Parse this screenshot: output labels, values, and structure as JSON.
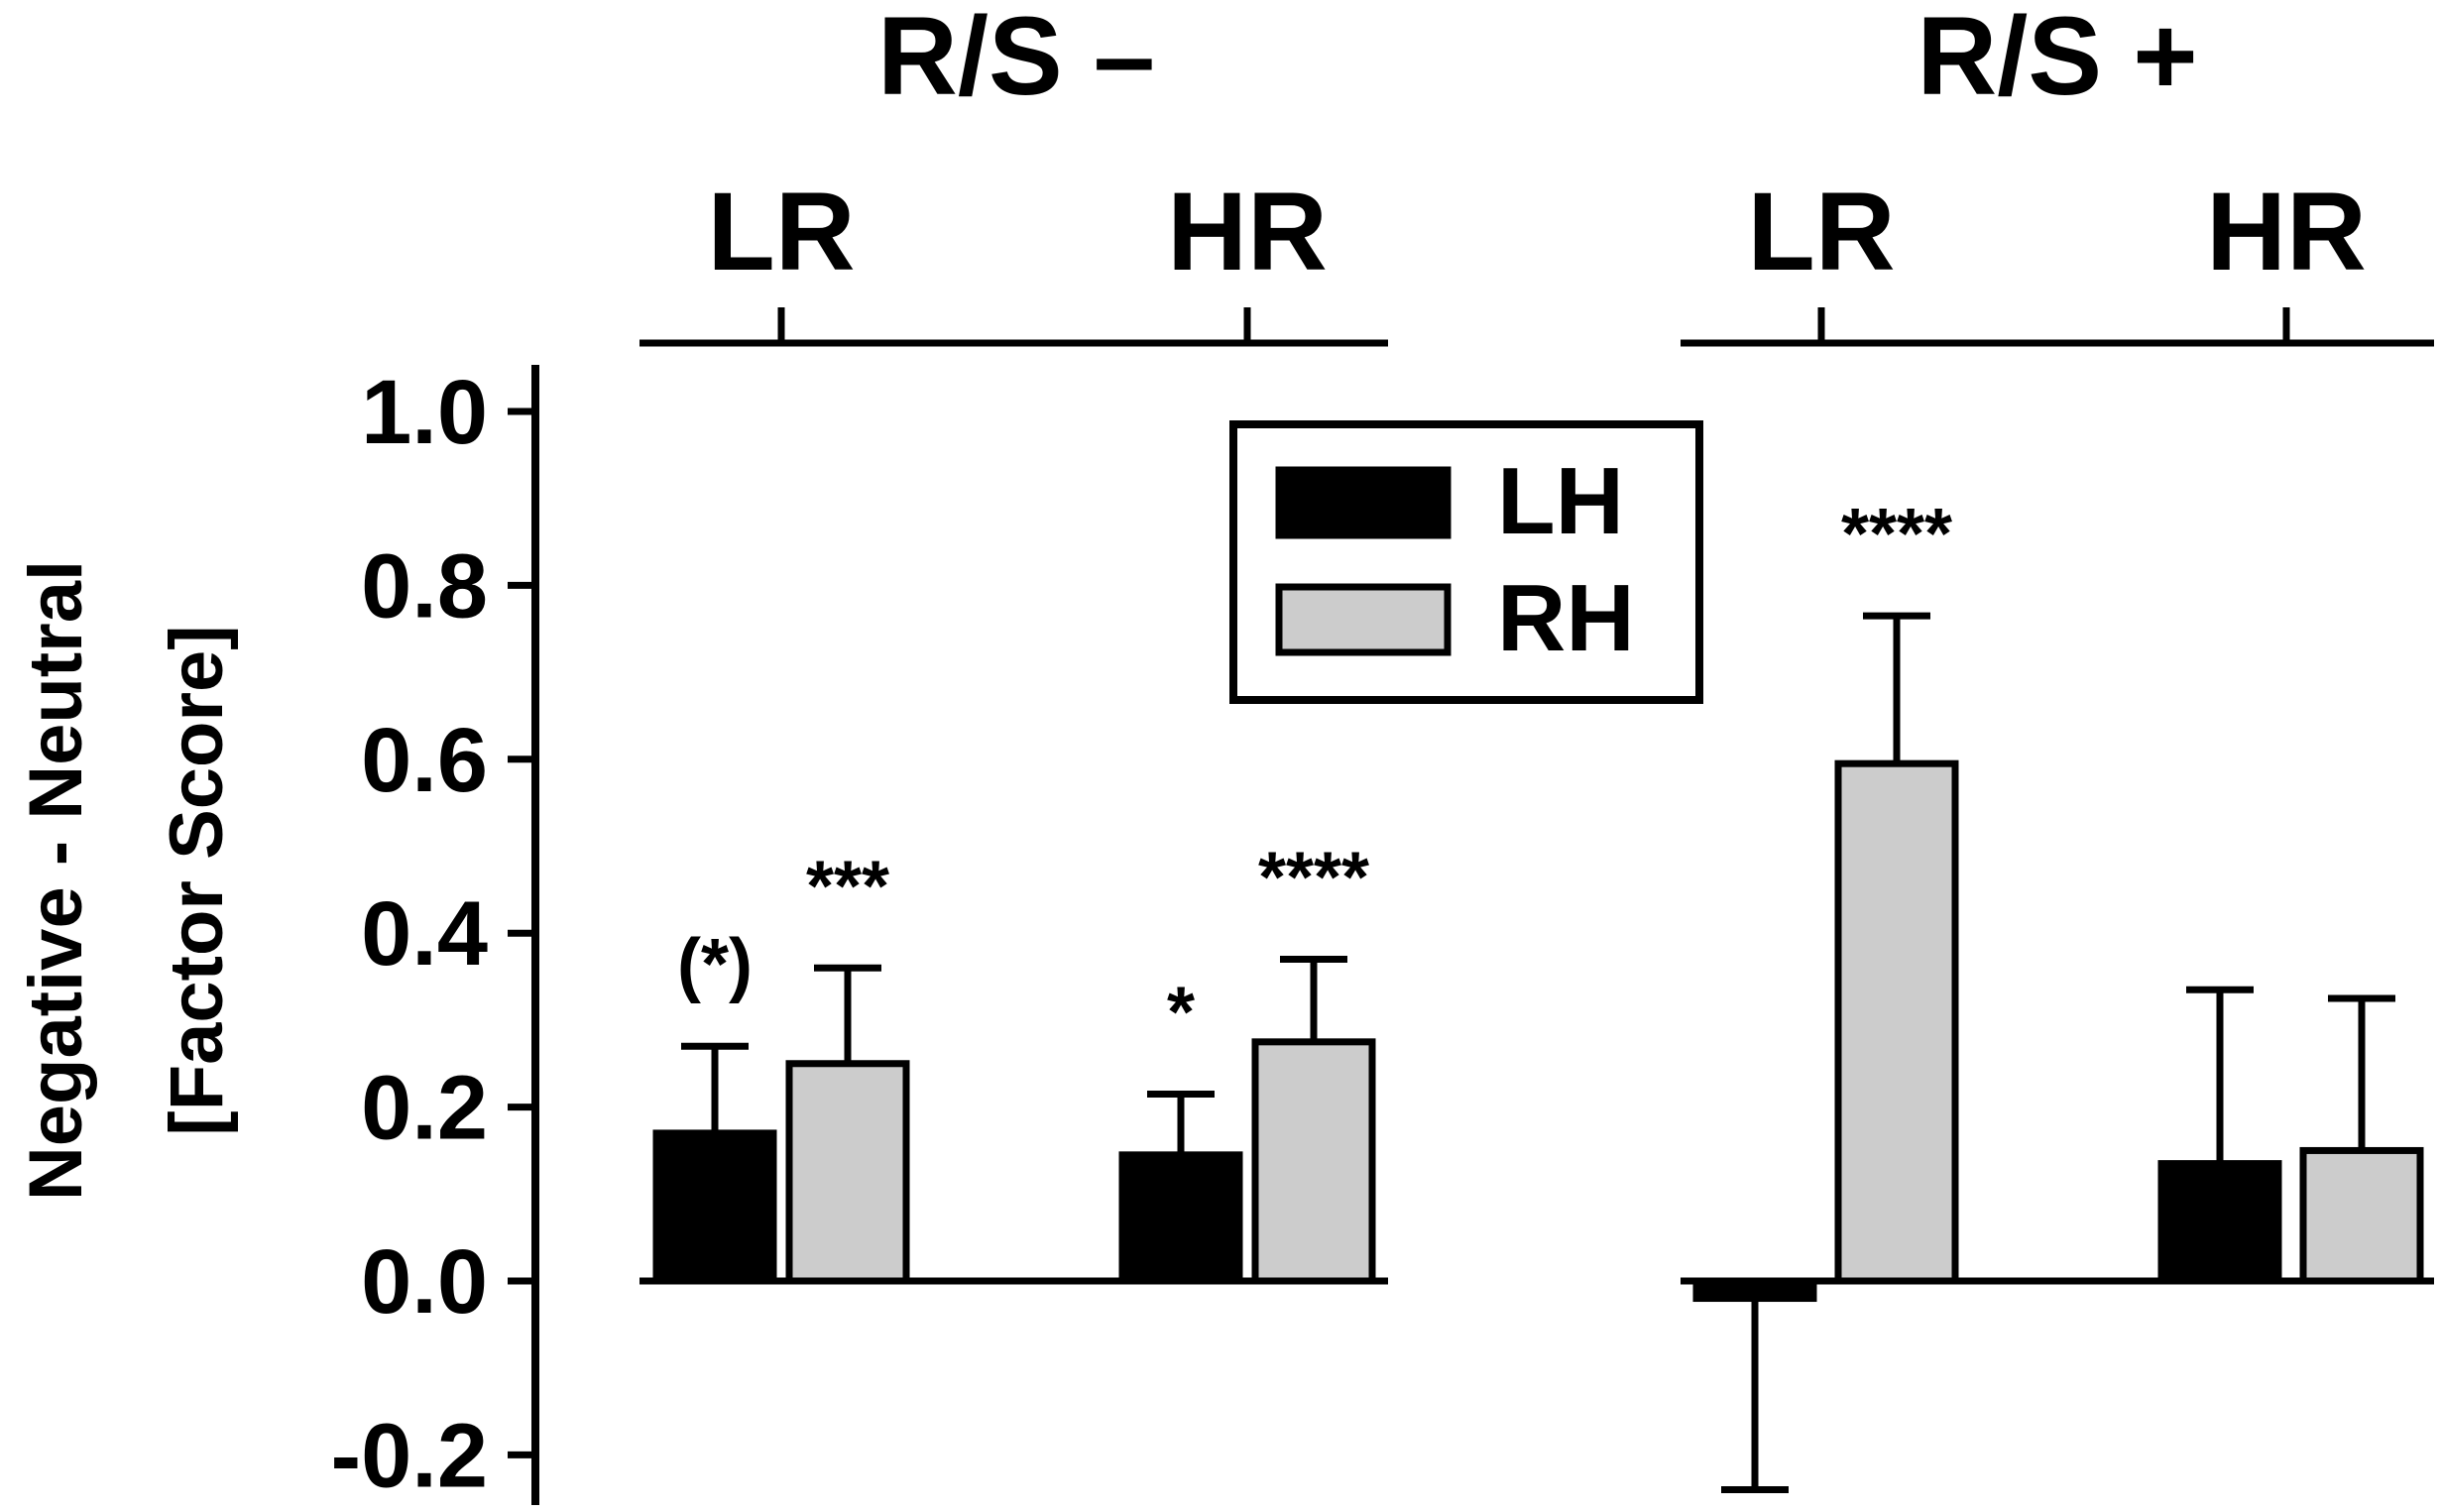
{
  "chart_data": {
    "type": "bar",
    "ylabel_line1": "Negative - Neutral",
    "ylabel_line2": "[Factor Score]",
    "ylim": [
      -0.2,
      1.0
    ],
    "yticks": [
      1.0,
      0.8,
      0.6,
      0.4,
      0.2,
      0.0,
      -0.2
    ],
    "ytick_labels": [
      "1.0",
      "0.8",
      "0.6",
      "0.4",
      "0.2",
      "0.0",
      "-0.2"
    ],
    "legend_position": "top-center",
    "series": [
      {
        "name": "LH",
        "color": "#000000"
      },
      {
        "name": "RH",
        "color": "#cccccc"
      }
    ],
    "panels": [
      {
        "label": "R/S –",
        "groups": [
          {
            "label": "LR",
            "bars": [
              {
                "series": "LH",
                "value": 0.17,
                "error": 0.1,
                "annotation": "(*)"
              },
              {
                "series": "RH",
                "value": 0.25,
                "error": 0.11,
                "annotation": "***"
              }
            ]
          },
          {
            "label": "HR",
            "bars": [
              {
                "series": "LH",
                "value": 0.145,
                "error": 0.07,
                "annotation": "*"
              },
              {
                "series": "RH",
                "value": 0.275,
                "error": 0.095,
                "annotation": "****"
              }
            ]
          }
        ]
      },
      {
        "label": "R/S +",
        "groups": [
          {
            "label": "LR",
            "bars": [
              {
                "series": "LH",
                "value": -0.02,
                "error": 0.22,
                "annotation": ""
              },
              {
                "series": "RH",
                "value": 0.595,
                "error": 0.17,
                "annotation": "****"
              }
            ]
          },
          {
            "label": "HR",
            "bars": [
              {
                "series": "LH",
                "value": 0.135,
                "error": 0.2,
                "annotation": ""
              },
              {
                "series": "RH",
                "value": 0.15,
                "error": 0.175,
                "annotation": ""
              }
            ]
          }
        ]
      }
    ]
  }
}
